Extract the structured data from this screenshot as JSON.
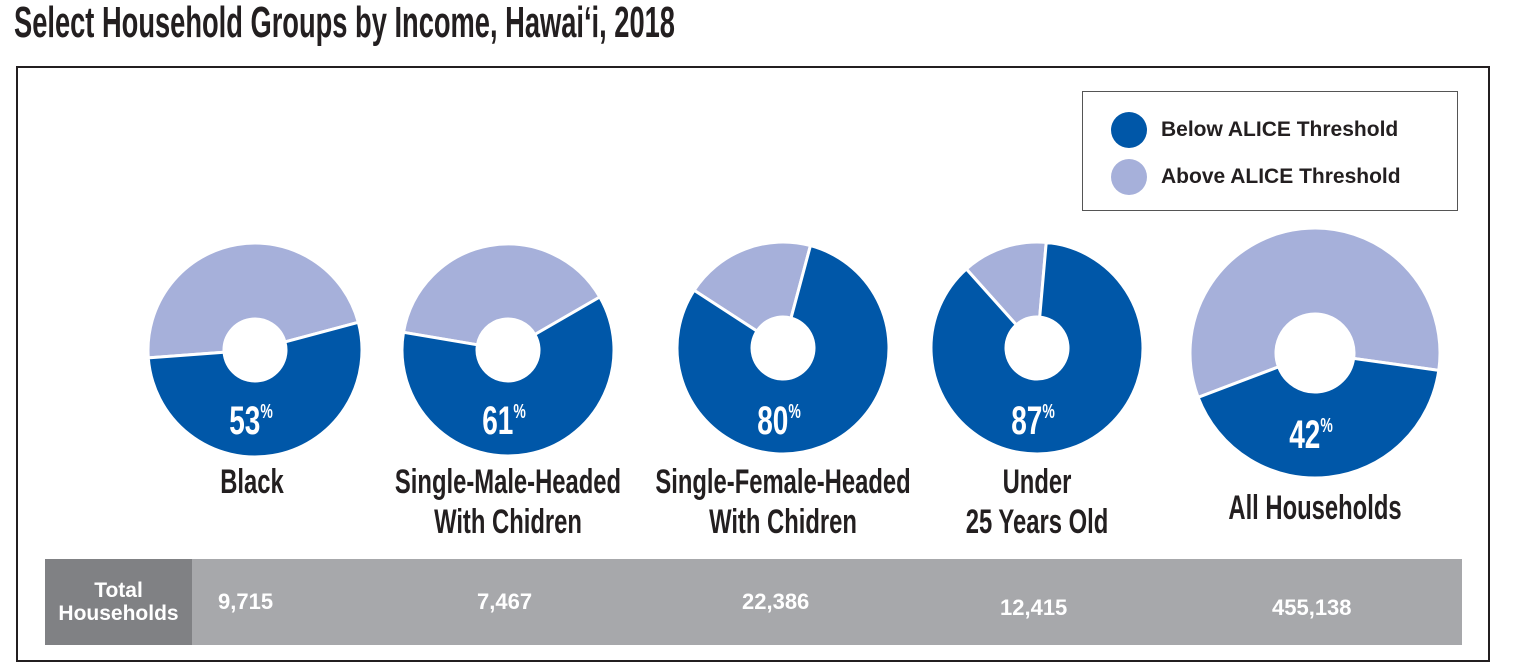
{
  "title": "Select Household Groups by Income, Hawai‘i, 2018",
  "legend": [
    {
      "label": "Below ALICE Threshold",
      "color": "#0057a8"
    },
    {
      "label": "Above ALICE Threshold",
      "color": "#a6b0da"
    }
  ],
  "chart_data": {
    "type": "pie",
    "variant": "donut",
    "series": [
      "Below ALICE Threshold",
      "Above ALICE Threshold"
    ],
    "categories": [
      "Black",
      "Single-Male-Headed With Chidren",
      "Single-Female-Headed With Chidren",
      "Under 25 Years Old",
      "All Households"
    ],
    "below_pct": [
      53,
      61,
      80,
      87,
      42
    ],
    "pct_labels": [
      "53%",
      "61%",
      "80%",
      "87%",
      "42%"
    ],
    "colors": {
      "below": "#0057a8",
      "above": "#a6b0da"
    }
  },
  "labels": [
    "Black",
    "Single-Male-Headed\nWith Chidren",
    "Single-Female-Headed\nWith Chidren",
    "Under\n25 Years Old",
    "All Households"
  ],
  "table": {
    "header": "Total Households",
    "values": [
      "9,715",
      "7,467",
      "22,386",
      "12,415",
      "455,138"
    ]
  }
}
